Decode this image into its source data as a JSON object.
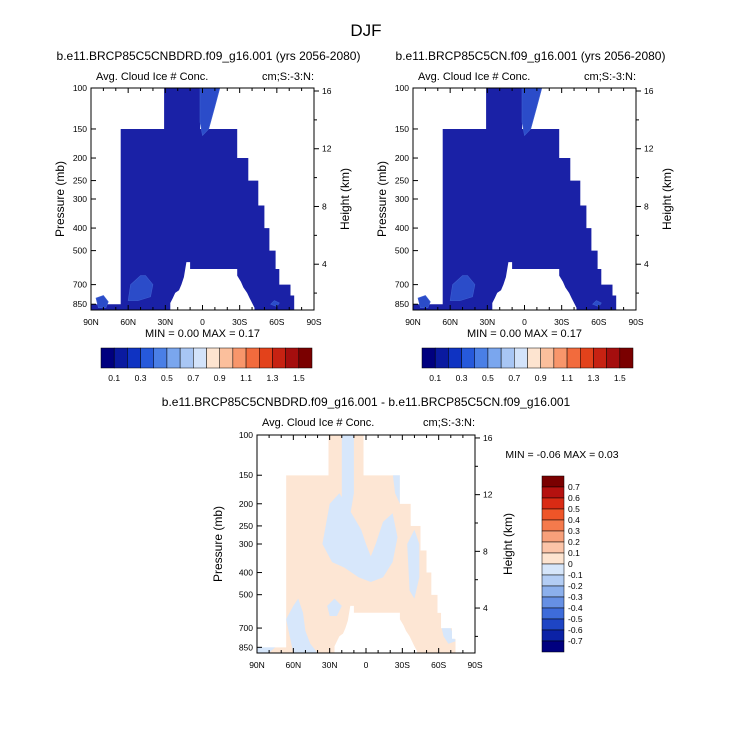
{
  "figure": {
    "season": "DJF"
  },
  "colors": {
    "ice_fill": "#1a21a6",
    "ice_patch": "#2b4cc9",
    "diff_pos": "#fde6d4",
    "diff_neg": "#d7e7fb",
    "white": "#ffffff"
  },
  "chart_data": [
    {
      "type": "heatmap",
      "title": "b.e11.BRCP85C5CNBDRD.f09_g16.001 (yrs 2056-2080)",
      "left_label": "Avg. Cloud Ice # Conc.",
      "right_label": "cm;S:-3:N:",
      "ylabel": "Pressure (mb)",
      "y2label": "Height (km)",
      "xticks": [
        "90N",
        "60N",
        "30N",
        "0",
        "30S",
        "60S",
        "90S"
      ],
      "x_range": [
        90,
        -90
      ],
      "yticks": [
        "100",
        "150",
        "200",
        "250",
        "300",
        "400",
        "500",
        "700",
        "850"
      ],
      "y_range_mb": [
        100,
        900
      ],
      "y2ticks": [
        "16",
        "12",
        "8",
        "4"
      ],
      "stats": {
        "min_label": "MIN =",
        "min": "0.00",
        "max_label": "MAX =",
        "max": "0.17"
      }
    },
    {
      "type": "heatmap",
      "title": "b.e11.BRCP85C5CN.f09_g16.001 (yrs 2056-2080)",
      "left_label": "Avg. Cloud Ice # Conc.",
      "right_label": "cm;S:-3:N:",
      "ylabel": "Pressure (mb)",
      "y2label": "Height (km)",
      "xticks": [
        "90N",
        "60N",
        "30N",
        "0",
        "30S",
        "60S",
        "90S"
      ],
      "x_range": [
        90,
        -90
      ],
      "yticks": [
        "100",
        "150",
        "200",
        "250",
        "300",
        "400",
        "500",
        "700",
        "850"
      ],
      "y_range_mb": [
        100,
        900
      ],
      "y2ticks": [
        "16",
        "12",
        "8",
        "4"
      ],
      "stats": {
        "min_label": "MIN =",
        "min": "0.00",
        "max_label": "MAX =",
        "max": "0.17"
      }
    },
    {
      "type": "heatmap",
      "title": "b.e11.BRCP85C5CNBDRD.f09_g16.001 - b.e11.BRCP85C5CN.f09_g16.001",
      "left_label": "Avg. Cloud Ice # Conc.",
      "right_label": "cm;S:-3:N:",
      "ylabel": "Pressure (mb)",
      "y2label": "Height (km)",
      "xticks": [
        "90N",
        "60N",
        "30N",
        "0",
        "30S",
        "60S",
        "90S"
      ],
      "x_range": [
        90,
        -90
      ],
      "yticks": [
        "100",
        "150",
        "200",
        "250",
        "300",
        "400",
        "500",
        "700",
        "850"
      ],
      "y_range_mb": [
        100,
        900
      ],
      "y2ticks": [
        "16",
        "12",
        "8",
        "4"
      ],
      "stats": {
        "min_label": "MIN =",
        "min": "-0.06",
        "max_label": "MAX =",
        "max": "0.03"
      }
    }
  ],
  "colorbar_top": {
    "colors": [
      "#00007f",
      "#0a1aa0",
      "#0f33c2",
      "#2659db",
      "#4a7fe6",
      "#7aa6ee",
      "#a8c6f4",
      "#d3e3fa",
      "#fde4d0",
      "#fbbf9c",
      "#f8966b",
      "#f26b3d",
      "#e3421b",
      "#c72212",
      "#a50e0e",
      "#7a0000"
    ],
    "labels": [
      "0.1",
      "0.3",
      "0.5",
      "0.7",
      "0.9",
      "1.1",
      "1.3",
      "1.5"
    ]
  },
  "colorbar_diff": {
    "colors": [
      "#7a0000",
      "#b5110f",
      "#d92b14",
      "#ee5528",
      "#f47a4c",
      "#f7a07a",
      "#fbc4a8",
      "#fde4d0",
      "#d6e6fa",
      "#b3cdf4",
      "#8cb0ec",
      "#6690e4",
      "#3e6cda",
      "#1e45c4",
      "#0b22a6",
      "#00007f"
    ],
    "labels": [
      "0.7",
      "0.6",
      "0.5",
      "0.4",
      "0.3",
      "0.2",
      "0.1",
      "0",
      "-0.1",
      "-0.2",
      "-0.3",
      "-0.4",
      "-0.5",
      "-0.6",
      "-0.7"
    ]
  }
}
